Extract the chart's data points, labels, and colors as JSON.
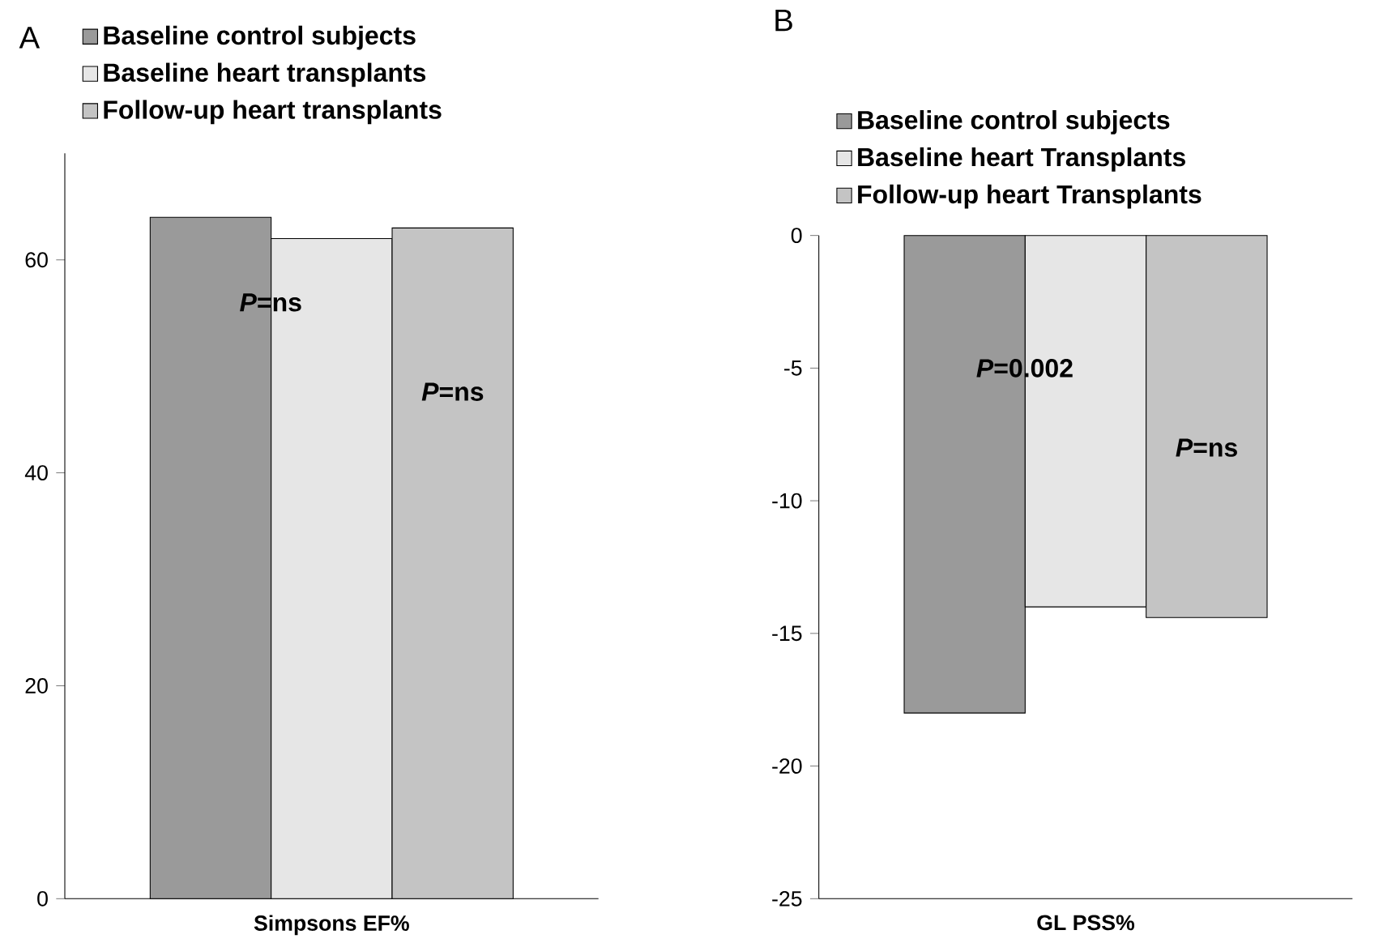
{
  "chart_data": [
    {
      "type": "bar",
      "title": "A",
      "categories": [
        "Simpsons EF%"
      ],
      "ylim": [
        0,
        70
      ],
      "yticks": [
        0,
        20,
        40,
        60
      ],
      "legend": "top",
      "annotations": [
        "*P*=ns",
        "*P*=ns"
      ],
      "series": [
        {
          "name": "Baseline control subjects",
          "color": "#9a9a9a",
          "values": [
            64
          ]
        },
        {
          "name": "Baseline heart transplants",
          "color": "#e6e6e6",
          "values": [
            62
          ]
        },
        {
          "name": "Follow-up heart  transplants",
          "color": "#c4c4c4",
          "values": [
            63
          ]
        }
      ]
    },
    {
      "type": "bar",
      "title": "B",
      "categories": [
        "GL PSS%"
      ],
      "ylim": [
        -25,
        0
      ],
      "yticks": [
        -25,
        -20,
        -15,
        -10,
        -5,
        0
      ],
      "legend": "top",
      "annotations": [
        "*P*=0.002",
        "*P*=ns"
      ],
      "series": [
        {
          "name": "Baseline control subjects",
          "color": "#9a9a9a",
          "values": [
            -18
          ]
        },
        {
          "name": "Baseline heart Transplants",
          "color": "#e6e6e6",
          "values": [
            -14
          ]
        },
        {
          "name": "Follow-up heart Transplants",
          "color": "#c4c4c4",
          "values": [
            -14.4
          ]
        }
      ]
    }
  ]
}
